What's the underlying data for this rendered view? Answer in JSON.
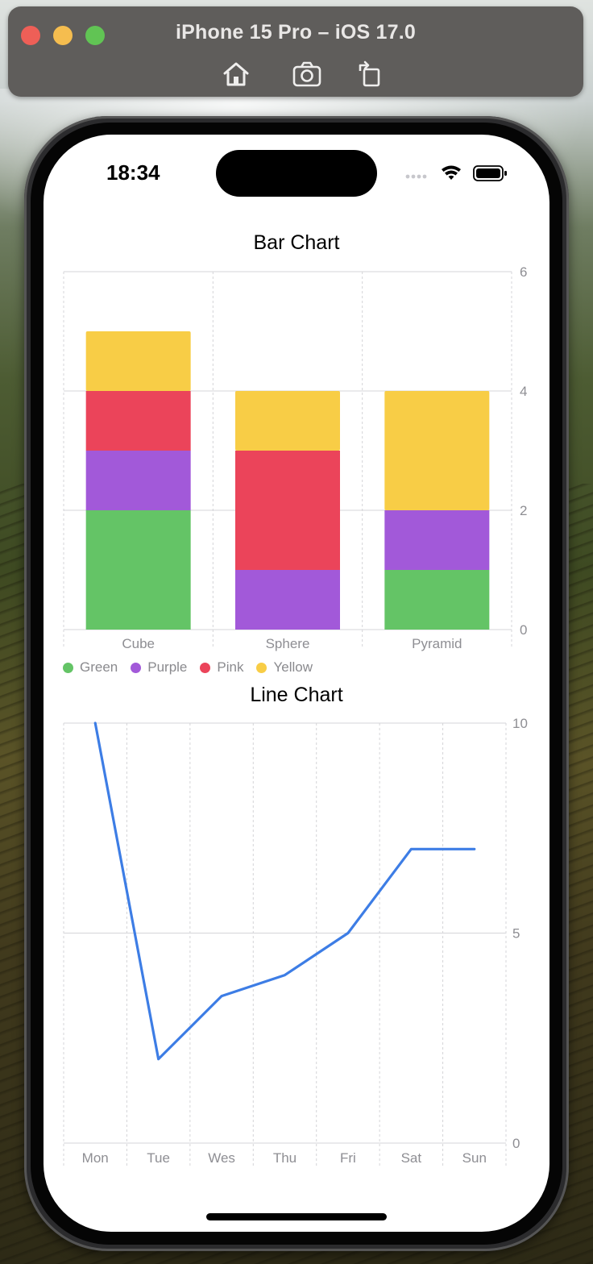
{
  "window": {
    "title": "iPhone 15 Pro – iOS 17.0",
    "toolbar": [
      {
        "icon": "home-icon"
      },
      {
        "icon": "screenshot-icon"
      },
      {
        "icon": "rotate-icon"
      }
    ]
  },
  "status_bar": {
    "time": "18:34",
    "icons": [
      "cellular-icon",
      "wifi-icon",
      "battery-icon"
    ]
  },
  "bar_chart": {
    "title": "Bar Chart"
  },
  "line_chart": {
    "title": "Line Chart"
  },
  "colors": {
    "Green": "#64c466",
    "Purple": "#a259d9",
    "Pink": "#eb445a",
    "Yellow": "#f8cd46",
    "line": "#3d7de5"
  },
  "chart_data": [
    {
      "type": "bar",
      "title": "Bar Chart",
      "categories": [
        "Cube",
        "Sphere",
        "Pyramid"
      ],
      "stacked": true,
      "series": [
        {
          "name": "Green",
          "values": [
            2,
            0,
            1
          ]
        },
        {
          "name": "Purple",
          "values": [
            1,
            1,
            1
          ]
        },
        {
          "name": "Pink",
          "values": [
            1,
            2,
            0
          ]
        },
        {
          "name": "Yellow",
          "values": [
            1,
            1,
            2
          ]
        }
      ],
      "ylim": [
        0,
        6
      ],
      "yticks": [
        0,
        2,
        4,
        6
      ],
      "y_axis_side": "right",
      "grid": true,
      "legend": "bottom-left"
    },
    {
      "type": "line",
      "title": "Line Chart",
      "x": [
        "Mon",
        "Tue",
        "Wes",
        "Thu",
        "Fri",
        "Sat",
        "Sun"
      ],
      "values": [
        10,
        2,
        3.5,
        4,
        5,
        7,
        7
      ],
      "ylim": [
        0,
        10
      ],
      "yticks": [
        0,
        5,
        10
      ],
      "y_axis_side": "right",
      "grid": true
    }
  ]
}
